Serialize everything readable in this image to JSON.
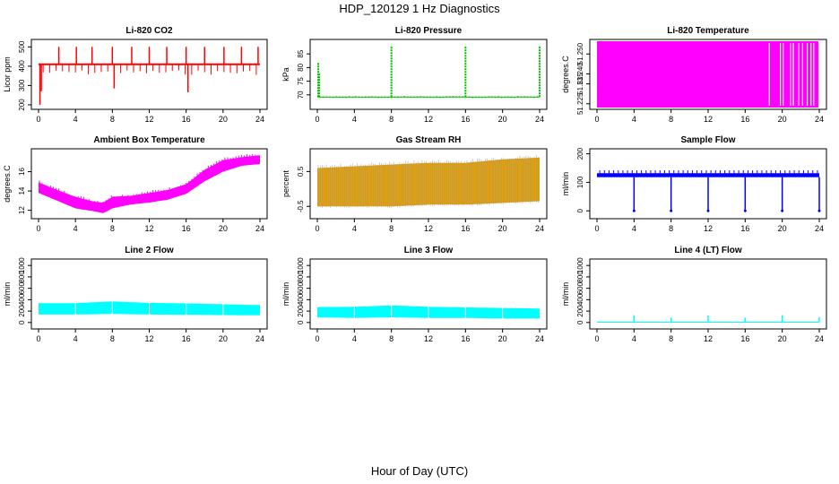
{
  "figure": {
    "title": "HDP_120129  1 Hz Diagnostics",
    "xlabel": "Hour of Day (UTC)"
  },
  "chart_data": [
    {
      "type": "line",
      "title": "Li-820 CO2",
      "ylabel": "Licor ppm",
      "color": "#ff0000",
      "xlim": [
        0,
        24
      ],
      "ylim": [
        195,
        520
      ],
      "xticks": [
        "0",
        "4",
        "8",
        "12",
        "16",
        "20",
        "24"
      ],
      "yticks": [
        200,
        300,
        400,
        500
      ],
      "ytick_labels": [
        "200",
        "300",
        "400",
        "500"
      ],
      "baseline": 410,
      "spikes": [
        [
          0.15,
          200
        ],
        [
          0.3,
          270
        ],
        [
          2.2,
          500
        ],
        [
          4.1,
          500
        ],
        [
          5.8,
          500
        ],
        [
          8.0,
          500
        ],
        [
          8.2,
          285
        ],
        [
          10.1,
          500
        ],
        [
          12.0,
          500
        ],
        [
          13.9,
          500
        ],
        [
          16.0,
          500
        ],
        [
          16.2,
          265
        ],
        [
          18.0,
          500
        ],
        [
          20.1,
          500
        ],
        [
          22.0,
          500
        ],
        [
          23.8,
          500
        ]
      ]
    },
    {
      "type": "line",
      "title": "Li-820 Pressure",
      "ylabel": "kPa",
      "color": "#00bb00",
      "xlim": [
        0,
        24
      ],
      "ylim": [
        66,
        89
      ],
      "xticks": [
        "0",
        "4",
        "8",
        "12",
        "16",
        "20",
        "24"
      ],
      "yticks": [
        70,
        75,
        80,
        85
      ],
      "ytick_labels": [
        "70",
        "75",
        "80",
        "85"
      ],
      "baseline": 69.2,
      "spikes": [
        [
          0.1,
          82
        ],
        [
          0.2,
          78
        ],
        [
          8.0,
          88
        ],
        [
          16.0,
          88
        ],
        [
          24.0,
          88
        ]
      ]
    },
    {
      "type": "area",
      "title": "Li-820 Temperature",
      "ylabel": "degrees.C",
      "color": "#ff00ff",
      "xlim": [
        0,
        24
      ],
      "ylim": [
        51.224,
        51.2555
      ],
      "xticks": [
        "0",
        "4",
        "8",
        "12",
        "16",
        "20",
        "24"
      ],
      "yticks": [
        51.225,
        51.235,
        51.24,
        51.25
      ],
      "ytick_labels": [
        "51.225",
        "51.235",
        "51.240",
        "51.250"
      ],
      "fill_range": [
        0,
        23.9
      ],
      "gaps": [
        18.6,
        19.8,
        20.1,
        20.9,
        21.2,
        21.8,
        22.2,
        22.7,
        23.1,
        23.4
      ]
    },
    {
      "type": "band",
      "title": "Ambient Box Temperature",
      "ylabel": "degrees.C",
      "color": "#ff00ff",
      "xlim": [
        0,
        24
      ],
      "ylim": [
        11.5,
        18
      ],
      "xticks": [
        "0",
        "4",
        "8",
        "12",
        "16",
        "20",
        "24"
      ],
      "yticks": [
        12,
        14,
        16
      ],
      "ytick_labels": [
        "12",
        "14",
        "16"
      ],
      "x": [
        0,
        2,
        4,
        6,
        7,
        8,
        10,
        12,
        14,
        16,
        18,
        20,
        22,
        24
      ],
      "lower": [
        13.8,
        13.0,
        12.2,
        11.9,
        11.7,
        12.2,
        12.6,
        12.8,
        13.1,
        13.7,
        15.0,
        16.0,
        16.6,
        16.8
      ],
      "upper": [
        14.9,
        14.1,
        13.4,
        12.9,
        12.8,
        13.4,
        13.5,
        13.8,
        14.1,
        14.7,
        16.2,
        17.2,
        17.5,
        17.7
      ]
    },
    {
      "type": "band",
      "title": "Gas Stream RH",
      "ylabel": "percent",
      "color": "#e6a000",
      "xlim": [
        0,
        24
      ],
      "ylim": [
        -0.75,
        1.05
      ],
      "xticks": [
        "0",
        "4",
        "8",
        "12",
        "16",
        "20",
        "24"
      ],
      "yticks": [
        -0.5,
        0.5
      ],
      "ytick_labels": [
        "-0.5",
        "0.5"
      ],
      "x": [
        0,
        4,
        8,
        12,
        16,
        20,
        24
      ],
      "lower": [
        -0.5,
        -0.5,
        -0.5,
        -0.45,
        -0.45,
        -0.4,
        -0.35
      ],
      "upper": [
        0.6,
        0.65,
        0.7,
        0.75,
        0.75,
        0.85,
        0.9
      ]
    },
    {
      "type": "line",
      "title": "Sample Flow",
      "ylabel": "ml/min",
      "color": "#0000ff",
      "xlim": [
        0,
        24
      ],
      "ylim": [
        -15,
        205
      ],
      "xticks": [
        "0",
        "4",
        "8",
        "12",
        "16",
        "20",
        "24"
      ],
      "yticks": [
        0,
        100,
        200
      ],
      "ytick_labels": [
        "0",
        "100",
        "200"
      ],
      "baseline": 118,
      "band_top": 132,
      "dips": [
        4.0,
        8.0,
        12.0,
        16.0,
        20.0,
        24.0
      ],
      "dip_value": 0
    },
    {
      "type": "band",
      "title": "Line 2 Flow",
      "ylabel": "ml/min",
      "color": "#00ffff",
      "xlim": [
        0,
        24
      ],
      "ylim": [
        -50,
        1050
      ],
      "xticks": [
        "0",
        "4",
        "8",
        "12",
        "16",
        "20",
        "24"
      ],
      "yticks": [
        0,
        200,
        400,
        600,
        800,
        1000
      ],
      "ytick_labels": [
        "0",
        "200",
        "400",
        "600",
        "800",
        "1000"
      ],
      "x": [
        0,
        4,
        8,
        12,
        16,
        20,
        24
      ],
      "lower": [
        140,
        140,
        150,
        140,
        135,
        130,
        125
      ],
      "upper": [
        340,
        340,
        370,
        345,
        335,
        320,
        305
      ],
      "gaps": [
        4.0,
        8.0,
        12.0,
        16.0,
        20.0
      ]
    },
    {
      "type": "band",
      "title": "Line 3 Flow",
      "ylabel": "ml/min",
      "color": "#00ffff",
      "xlim": [
        0,
        24
      ],
      "ylim": [
        -50,
        1050
      ],
      "xticks": [
        "0",
        "4",
        "8",
        "12",
        "16",
        "20",
        "24"
      ],
      "yticks": [
        0,
        200,
        400,
        600,
        800,
        1000
      ],
      "ytick_labels": [
        "0",
        "200",
        "400",
        "600",
        "800",
        "1000"
      ],
      "x": [
        0,
        4,
        8,
        12,
        16,
        20,
        24
      ],
      "lower": [
        90,
        80,
        90,
        80,
        80,
        70,
        70
      ],
      "upper": [
        270,
        275,
        300,
        275,
        265,
        255,
        245
      ],
      "gaps": [
        4.0,
        8.0,
        12.0,
        16.0,
        20.0
      ]
    },
    {
      "type": "line",
      "title": "Line 4 (LT) Flow",
      "ylabel": "ml/min",
      "color": "#00ffff",
      "xlim": [
        0,
        24
      ],
      "ylim": [
        -50,
        1050
      ],
      "xticks": [
        "0",
        "4",
        "8",
        "12",
        "16",
        "20",
        "24"
      ],
      "yticks": [
        0,
        200,
        400,
        600,
        800,
        1000
      ],
      "ytick_labels": [
        "0",
        "200",
        "400",
        "600",
        "800",
        "1000"
      ],
      "baseline": 5,
      "spikes": [
        [
          4.0,
          130
        ],
        [
          8.0,
          85
        ],
        [
          12.0,
          125
        ],
        [
          16.0,
          85
        ],
        [
          20.0,
          130
        ],
        [
          24.0,
          95
        ]
      ]
    }
  ]
}
